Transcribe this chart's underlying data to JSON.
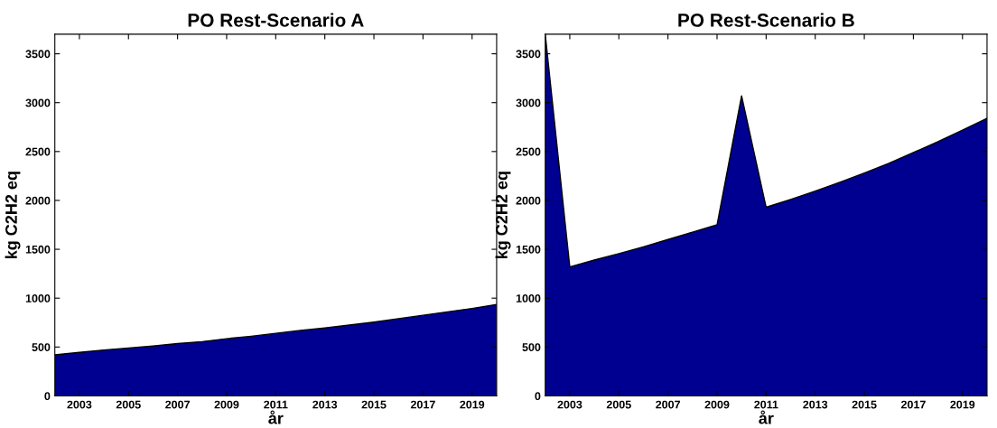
{
  "chart_data": [
    {
      "type": "area",
      "title": "PO Rest-Scenario A",
      "xlabel": "år",
      "ylabel": "kg C2H2 eq",
      "x": [
        2002,
        2003,
        2004,
        2005,
        2006,
        2007,
        2008,
        2009,
        2010,
        2011,
        2012,
        2013,
        2014,
        2015,
        2016,
        2017,
        2018,
        2019,
        2020
      ],
      "series": [
        {
          "color": "#000090",
          "values": [
            420,
            445,
            470,
            490,
            510,
            535,
            555,
            585,
            610,
            640,
            670,
            695,
            725,
            755,
            790,
            825,
            860,
            895,
            935
          ]
        }
      ],
      "xlim": [
        2002,
        2020
      ],
      "xticks": [
        2003,
        2005,
        2007,
        2009,
        2011,
        2013,
        2015,
        2017,
        2019
      ],
      "ylim": [
        0,
        3700
      ],
      "yticks": [
        0,
        500,
        1000,
        1500,
        2000,
        2500,
        3000,
        3500
      ],
      "grid": false,
      "legend": false
    },
    {
      "type": "area",
      "title": "PO Rest-Scenario B",
      "xlabel": "år",
      "ylabel": "kg C2H2 eq",
      "x": [
        2002,
        2003,
        2004,
        2005,
        2006,
        2007,
        2008,
        2009,
        2010,
        2011,
        2012,
        2013,
        2014,
        2015,
        2016,
        2017,
        2018,
        2019,
        2020
      ],
      "series": [
        {
          "color": "#000090",
          "values": [
            3700,
            1320,
            1390,
            1455,
            1525,
            1600,
            1675,
            1750,
            3070,
            1930,
            2010,
            2095,
            2185,
            2280,
            2380,
            2490,
            2600,
            2720,
            2840
          ]
        }
      ],
      "xlim": [
        2002,
        2020
      ],
      "xticks": [
        2003,
        2005,
        2007,
        2009,
        2011,
        2013,
        2015,
        2017,
        2019
      ],
      "ylim": [
        0,
        3700
      ],
      "yticks": [
        0,
        500,
        1000,
        1500,
        2000,
        2500,
        3000,
        3500
      ],
      "grid": false,
      "legend": false
    }
  ]
}
